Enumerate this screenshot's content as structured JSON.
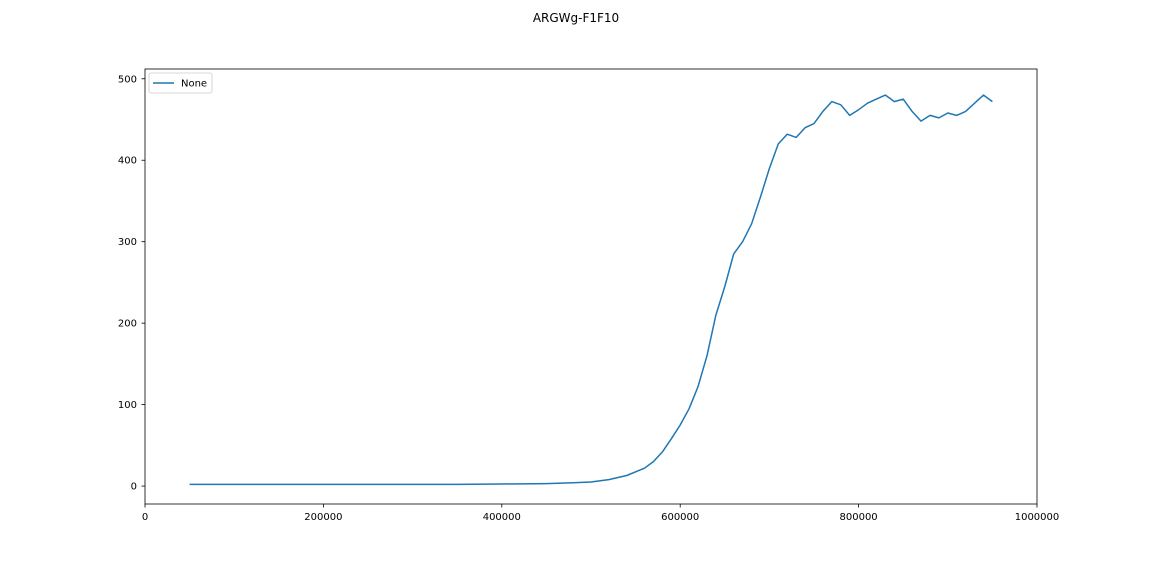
{
  "chart_data": {
    "type": "line",
    "title": "ARGWg-F1F10",
    "xlabel": "",
    "ylabel": "",
    "xlim": [
      0,
      1000000
    ],
    "ylim": [
      -22,
      512
    ],
    "x_ticks": [
      0,
      200000,
      400000,
      600000,
      800000,
      1000000
    ],
    "x_tick_labels": [
      "0",
      "200000",
      "400000",
      "600000",
      "800000",
      "1000000"
    ],
    "y_ticks": [
      0,
      100,
      200,
      300,
      400,
      500
    ],
    "y_tick_labels": [
      "0",
      "100",
      "200",
      "300",
      "400",
      "500"
    ],
    "grid": false,
    "legend": {
      "position": "top-left",
      "entries": [
        "None"
      ]
    },
    "series": [
      {
        "name": "None",
        "color": "#1f77b4",
        "x": [
          50000,
          100000,
          150000,
          200000,
          250000,
          300000,
          350000,
          400000,
          450000,
          480000,
          500000,
          520000,
          540000,
          560000,
          570000,
          580000,
          590000,
          600000,
          610000,
          620000,
          630000,
          640000,
          650000,
          660000,
          670000,
          680000,
          690000,
          700000,
          710000,
          720000,
          730000,
          740000,
          750000,
          760000,
          770000,
          780000,
          790000,
          800000,
          810000,
          820000,
          830000,
          840000,
          850000,
          860000,
          870000,
          880000,
          890000,
          900000,
          910000,
          920000,
          930000,
          940000,
          950000
        ],
        "y": [
          2,
          2,
          2,
          2,
          2,
          2,
          2,
          2.5,
          3,
          4,
          5,
          8,
          13,
          22,
          30,
          42,
          58,
          75,
          95,
          122,
          160,
          210,
          245,
          285,
          300,
          322,
          355,
          390,
          420,
          432,
          428,
          440,
          445,
          460,
          472,
          468,
          455,
          462,
          470,
          475,
          480,
          472,
          475,
          460,
          448,
          455,
          452,
          458,
          455,
          460,
          470,
          480,
          472
        ]
      }
    ]
  }
}
